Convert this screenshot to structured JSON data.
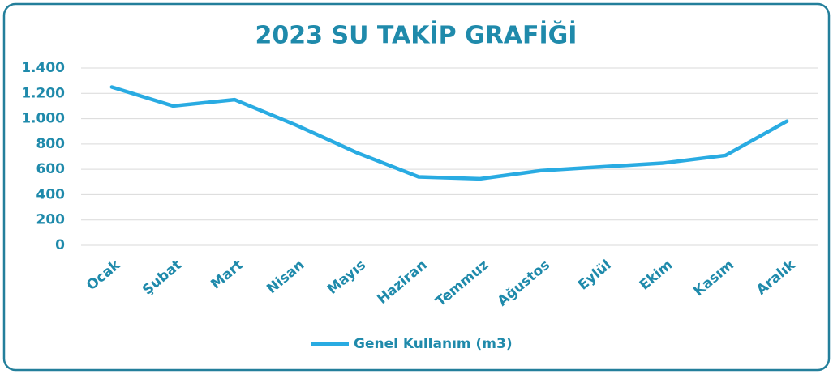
{
  "chart_data": {
    "type": "line",
    "title": "2023 SU TAKİP GRAFİĞİ",
    "categories": [
      "Ocak",
      "Şubat",
      "Mart",
      "Nisan",
      "Mayıs",
      "Haziran",
      "Temmuz",
      "Ağustos",
      "Eylül",
      "Ekim",
      "Kasım",
      "Aralık"
    ],
    "series": [
      {
        "name": "Genel Kullanım (m3)",
        "color": "#29abe2",
        "values": [
          1250,
          1100,
          1150,
          950,
          730,
          540,
          525,
          590,
          620,
          650,
          710,
          980
        ]
      }
    ],
    "ylim": [
      0,
      1400
    ],
    "yticks": [
      0,
      200,
      400,
      600,
      800,
      {
        "value": 1000,
        "label": "1.000"
      },
      {
        "value": 1200,
        "label": "1.200"
      },
      {
        "value": 1400,
        "label": "1.400"
      }
    ],
    "grid": true,
    "legend": "bottom"
  }
}
